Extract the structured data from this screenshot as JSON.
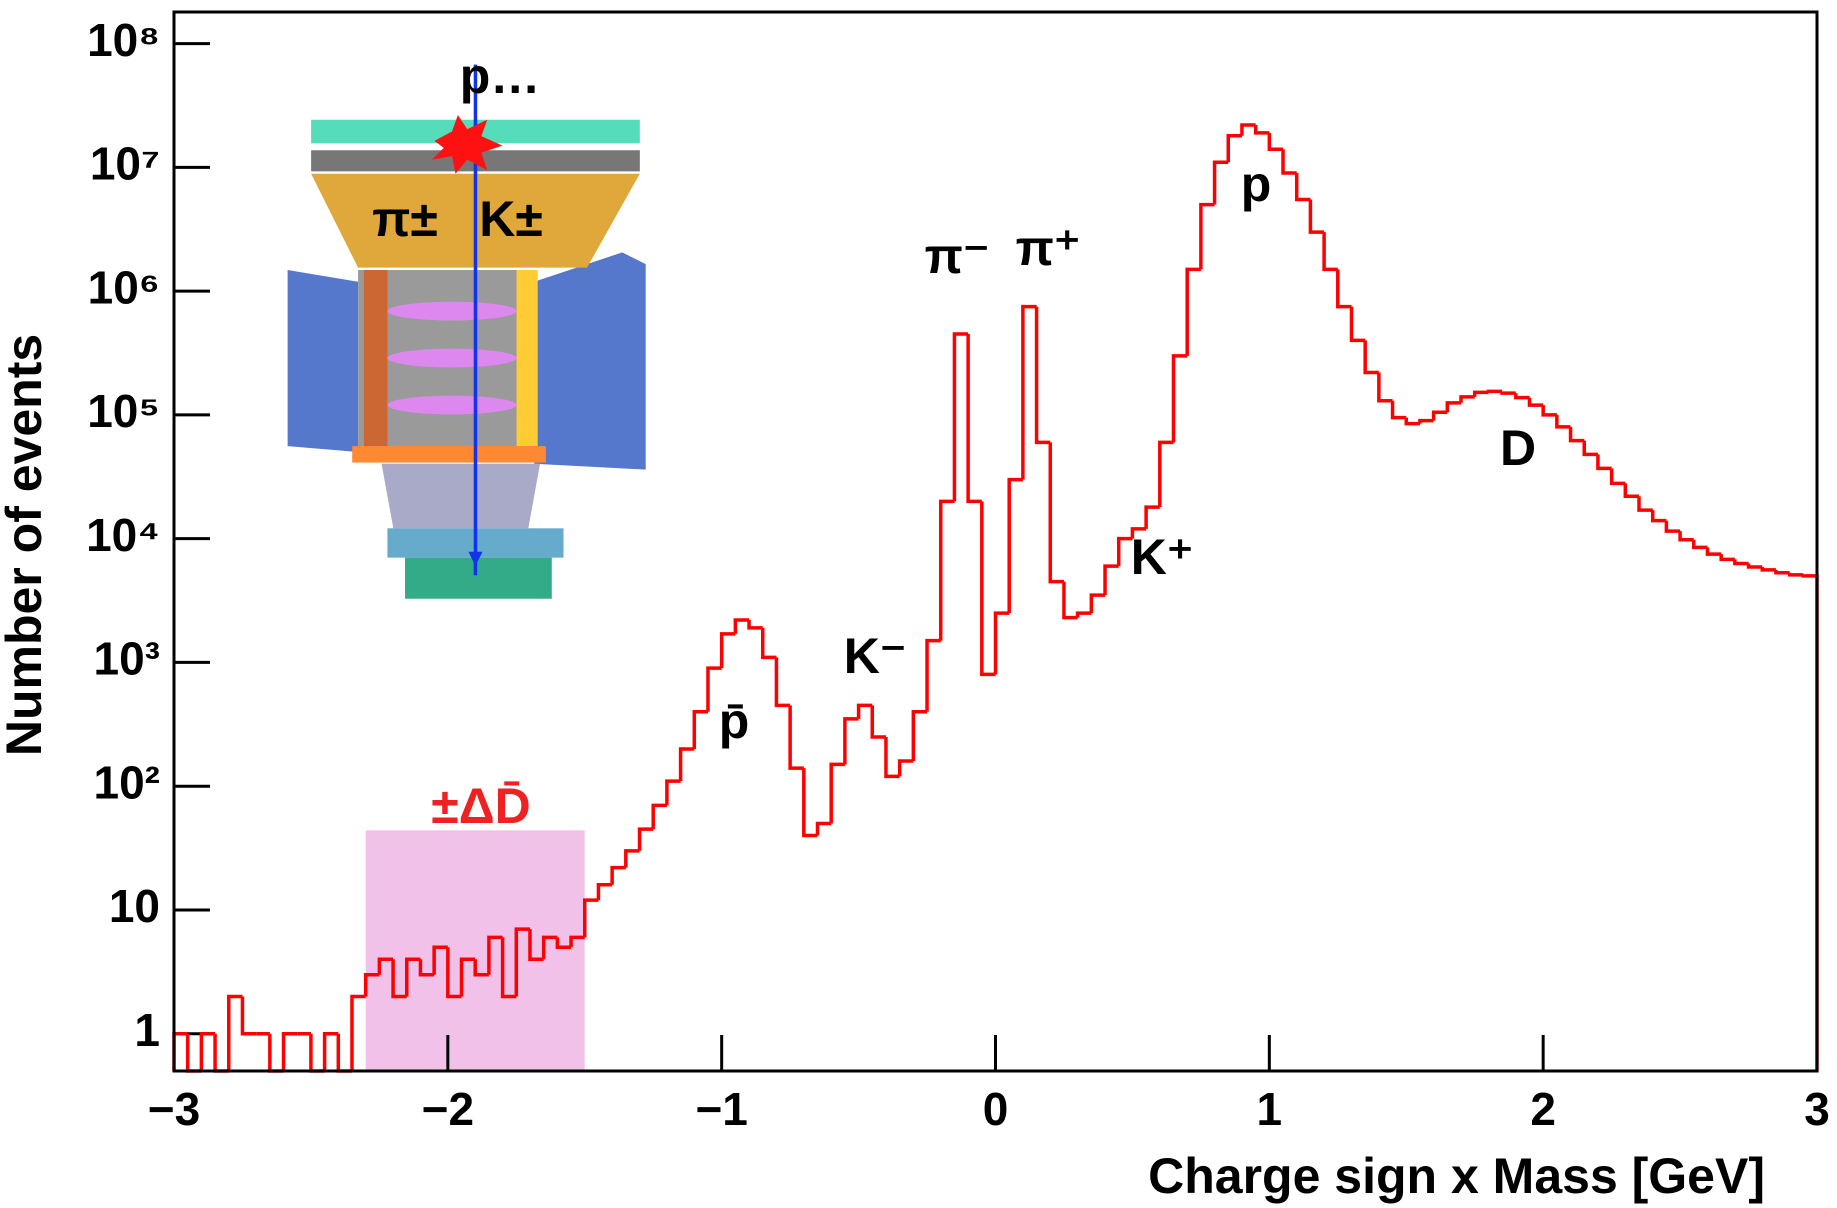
{
  "chart_data": {
    "type": "histogram",
    "xlabel": "Charge sign x Mass [GeV]",
    "ylabel": "Number of events",
    "log_y": true,
    "color": "#ff0000",
    "xlim": [
      -3,
      3
    ],
    "ylim": [
      0.5,
      180000000
    ],
    "xticks": [
      {
        "value": -3,
        "label": "−3"
      },
      {
        "value": -2,
        "label": "−2"
      },
      {
        "value": -1,
        "label": "−1"
      },
      0,
      1,
      2,
      3
    ],
    "yticks": [
      1,
      10,
      {
        "value": 100,
        "label": "10²"
      },
      {
        "value": 1000,
        "label": "10³"
      },
      {
        "value": 10000,
        "label": "10⁴"
      },
      {
        "value": 100000,
        "label": "10⁵"
      },
      {
        "value": 1000000,
        "label": "10⁶"
      },
      {
        "value": 10000000,
        "label": "10⁷"
      },
      {
        "value": 100000000,
        "label": "10⁸"
      }
    ],
    "shaded_region": {
      "xlim": [
        -2.3,
        -1.5
      ],
      "top": 44,
      "color": "#f2c1ea"
    },
    "annotations": [
      "p…",
      "π±",
      "K±",
      "π⁻",
      "π⁺",
      "p",
      "D",
      "K⁺",
      "K⁻",
      "p̄",
      "±ΔD̄"
    ],
    "bins": [
      -3,
      -2.95,
      -2.9,
      -2.85,
      -2.8,
      -2.75,
      -2.7,
      -2.65,
      -2.6,
      -2.55,
      -2.5,
      -2.45,
      -2.4,
      -2.35,
      -2.3,
      -2.25,
      -2.2,
      -2.15,
      -2.1,
      -2.05,
      -2,
      -1.95,
      -1.9,
      -1.85,
      -1.8,
      -1.75,
      -1.7,
      -1.65,
      -1.6,
      -1.55,
      -1.5,
      -1.45,
      -1.4,
      -1.35,
      -1.3,
      -1.25,
      -1.2,
      -1.15,
      -1.1,
      -1.05,
      -1,
      -0.95,
      -0.9,
      -0.85,
      -0.8,
      -0.75,
      -0.7,
      -0.65,
      -0.6,
      -0.55,
      -0.5,
      -0.45,
      -0.4,
      -0.35,
      -0.3,
      -0.25,
      -0.2,
      -0.15,
      -0.1,
      -0.05,
      0,
      0.05,
      0.1,
      0.15,
      0.2,
      0.25,
      0.3,
      0.35,
      0.4,
      0.45,
      0.5,
      0.55,
      0.6,
      0.65,
      0.7,
      0.75,
      0.8,
      0.85,
      0.9,
      0.95,
      1,
      1.05,
      1.1,
      1.15,
      1.2,
      1.25,
      1.3,
      1.35,
      1.4,
      1.45,
      1.5,
      1.55,
      1.6,
      1.65,
      1.7,
      1.75,
      1.8,
      1.85,
      1.9,
      1.95,
      2,
      2.05,
      2.1,
      2.15,
      2.2,
      2.25,
      2.3,
      2.35,
      2.4,
      2.45,
      2.5,
      2.55,
      2.6,
      2.65,
      2.7,
      2.75,
      2.8,
      2.85,
      2.9,
      2.95,
      3
    ],
    "values": [
      1,
      0,
      1,
      0,
      2,
      1,
      1,
      0,
      1,
      1,
      0,
      1,
      0,
      2,
      3,
      4,
      2,
      4,
      3,
      5,
      2,
      4,
      3,
      6,
      2,
      7,
      4,
      6,
      5,
      6,
      12,
      16,
      22,
      30,
      45,
      70,
      110,
      200,
      400,
      900,
      1700,
      2200,
      1900,
      1100,
      450,
      140,
      40,
      50,
      150,
      350,
      450,
      250,
      120,
      160,
      400,
      1500,
      20000,
      450000,
      20000,
      800,
      2500,
      30000,
      750000,
      60000,
      4500,
      2300,
      2500,
      3500,
      6000,
      10000,
      12000,
      18000,
      60000,
      300000,
      1500000,
      5000000,
      11000000,
      18000000,
      22000000,
      19000000,
      14000000,
      9000000,
      5500000,
      3000000,
      1500000,
      750000,
      400000,
      220000,
      130000,
      95000,
      85000,
      90000,
      105000,
      125000,
      140000,
      152000,
      155000,
      150000,
      138000,
      120000,
      100000,
      80000,
      62000,
      48000,
      37000,
      28000,
      22000,
      17000,
      14000,
      11500,
      9800,
      8500,
      7500,
      6800,
      6300,
      5900,
      5600,
      5300,
      5100,
      5000
    ]
  }
}
